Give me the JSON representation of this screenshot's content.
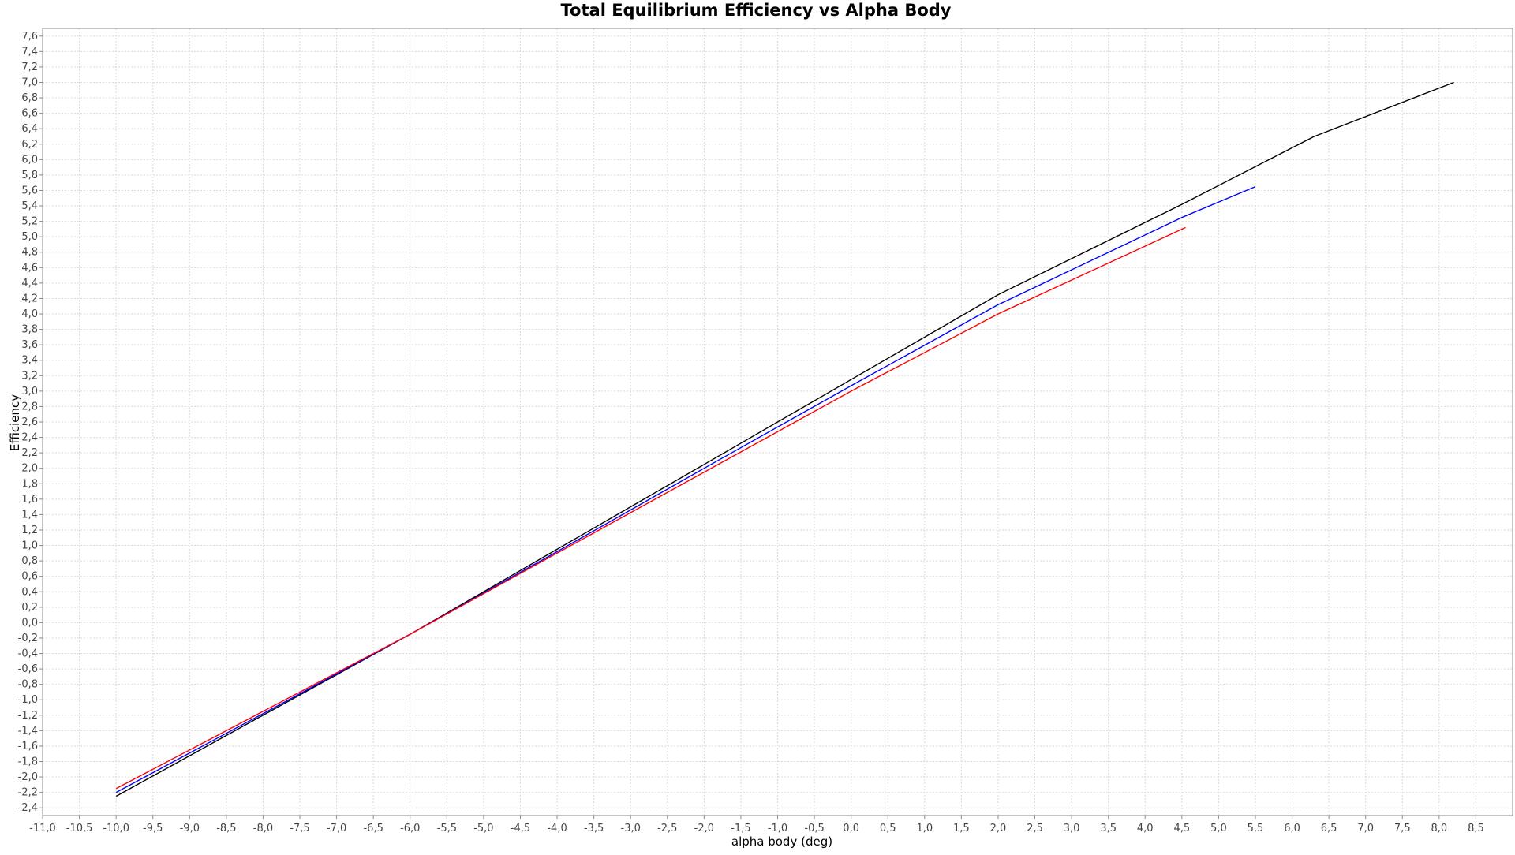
{
  "chart_data": {
    "type": "line",
    "title": "Total Equilibrium Efficiency vs Alpha Body",
    "xlabel": "alpha body (deg)",
    "ylabel": "Efficiency",
    "xlim": [
      -11.0,
      9.0
    ],
    "ylim": [
      -2.5,
      7.7
    ],
    "x_tick_step": 0.5,
    "y_tick_step": 0.2,
    "x_ticks": [
      "-11,0",
      "-10,5",
      "-10,0",
      "-9,5",
      "-9,0",
      "-8,5",
      "-8,0",
      "-7,5",
      "-7,0",
      "-6,5",
      "-6,0",
      "-5,5",
      "-5,0",
      "-4,5",
      "-4,0",
      "-3,5",
      "-3,0",
      "-2,5",
      "-2,0",
      "-1,5",
      "-1,0",
      "-0,5",
      "0,0",
      "0,5",
      "1,0",
      "1,5",
      "2,0",
      "2,5",
      "3,0",
      "3,5",
      "4,0",
      "4,5",
      "5,0",
      "5,5",
      "6,0",
      "6,5",
      "7,0",
      "7,5",
      "8,0",
      "8,5"
    ],
    "y_ticks": [
      "-2,4",
      "-2,2",
      "-2,0",
      "-1,8",
      "-1,6",
      "-1,4",
      "-1,2",
      "-1,0",
      "-0,8",
      "-0,6",
      "-0,4",
      "-0,2",
      "0,0",
      "0,2",
      "0,4",
      "0,6",
      "0,8",
      "1,0",
      "1,2",
      "1,4",
      "1,6",
      "1,8",
      "2,0",
      "2,2",
      "2,4",
      "2,6",
      "2,8",
      "3,0",
      "3,2",
      "3,4",
      "3,6",
      "3,8",
      "4,0",
      "4,2",
      "4,4",
      "4,6",
      "4,8",
      "5,0",
      "5,2",
      "5,4",
      "5,6",
      "5,8",
      "6,0",
      "6,2",
      "6,4",
      "6,6",
      "6,8",
      "7,0",
      "7,2",
      "7,4",
      "7,6"
    ],
    "grid": true,
    "legend": "none",
    "series": [
      {
        "color": "#000000",
        "x": [
          -10.0,
          -8.0,
          -6.0,
          -4.0,
          -2.0,
          0.0,
          2.0,
          4.5,
          6.3,
          8.2
        ],
        "y": [
          -2.25,
          -1.2,
          -0.15,
          0.95,
          2.05,
          3.15,
          4.25,
          5.42,
          6.3,
          7.0
        ]
      },
      {
        "color": "#0000ff",
        "x": [
          -10.0,
          -8.0,
          -6.0,
          -4.0,
          -2.0,
          0.0,
          2.0,
          4.5,
          5.5
        ],
        "y": [
          -2.2,
          -1.18,
          -0.15,
          0.92,
          2.0,
          3.07,
          4.12,
          5.25,
          5.65
        ]
      },
      {
        "color": "#ff0000",
        "x": [
          -10.0,
          -8.0,
          -6.0,
          -4.0,
          -2.0,
          0.0,
          2.0,
          4.55
        ],
        "y": [
          -2.15,
          -1.15,
          -0.15,
          0.9,
          1.95,
          3.0,
          4.0,
          5.12
        ]
      }
    ]
  }
}
